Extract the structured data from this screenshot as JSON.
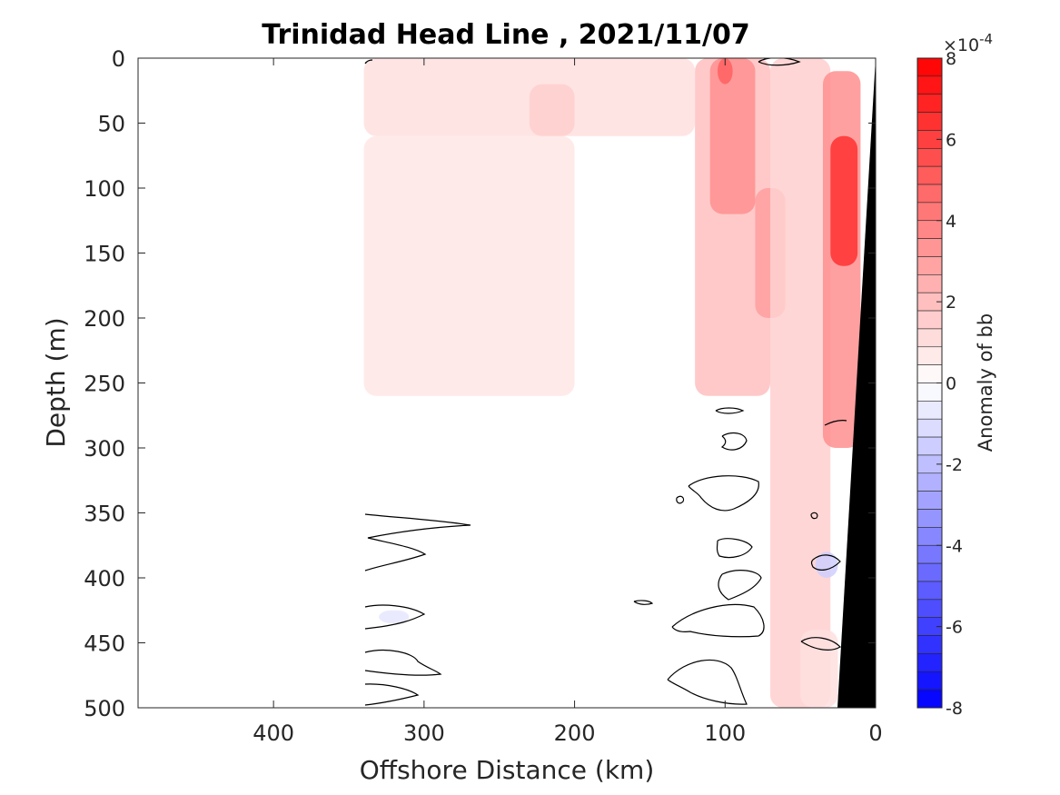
{
  "chart_data": {
    "type": "heatmap",
    "title": "Trinidad Head Line , 2021/11/07",
    "xlabel": "Offshore Distance (km)",
    "ylabel": "Depth (m)",
    "xlim": [
      490,
      0
    ],
    "ylim": [
      0,
      500
    ],
    "x_reversed": true,
    "y_reversed": true,
    "xticks": [
      400,
      300,
      200,
      100,
      0
    ],
    "yticks": [
      0,
      50,
      100,
      150,
      200,
      250,
      300,
      350,
      400,
      450,
      500
    ],
    "colorbar": {
      "label": "Anomaly of bb",
      "exponent_label": "×10",
      "exponent_power": "-4",
      "range": [
        -8,
        8
      ],
      "levels": 36,
      "ticks": [
        8,
        6,
        4,
        2,
        0,
        -2,
        -4,
        -6,
        -8
      ],
      "colormap": [
        "#0000ff",
        "#ffffff",
        "#ff0000"
      ]
    },
    "data_extent_km": 340,
    "bottom_color": "#000000",
    "anomaly_regions": [
      {
        "x": [
          340,
          120
        ],
        "y": [
          0,
          60
        ],
        "value": 1.0
      },
      {
        "x": [
          340,
          200
        ],
        "y": [
          60,
          260
        ],
        "value": 0.8
      },
      {
        "x": [
          230,
          200
        ],
        "y": [
          20,
          60
        ],
        "value": 1.5
      },
      {
        "x": [
          120,
          70
        ],
        "y": [
          0,
          260
        ],
        "value": 2.0
      },
      {
        "x": [
          110,
          80
        ],
        "y": [
          0,
          120
        ],
        "value": 3.5
      },
      {
        "x": [
          105,
          95
        ],
        "y": [
          0,
          20
        ],
        "value": 5.0
      },
      {
        "x": [
          80,
          60
        ],
        "y": [
          100,
          200
        ],
        "value": 3.0
      },
      {
        "x": [
          70,
          30
        ],
        "y": [
          0,
          500
        ],
        "value": 1.5
      },
      {
        "x": [
          35,
          10
        ],
        "y": [
          10,
          300
        ],
        "value": 3.5
      },
      {
        "x": [
          30,
          12
        ],
        "y": [
          60,
          160
        ],
        "value": 6.5
      },
      {
        "x": [
          50,
          25
        ],
        "y": [
          440,
          500
        ],
        "value": 1.0
      },
      {
        "x": [
          40,
          25
        ],
        "y": [
          380,
          400
        ],
        "value": -1.5
      },
      {
        "x": [
          330,
          310
        ],
        "y": [
          425,
          435
        ],
        "value": -0.8
      }
    ]
  }
}
